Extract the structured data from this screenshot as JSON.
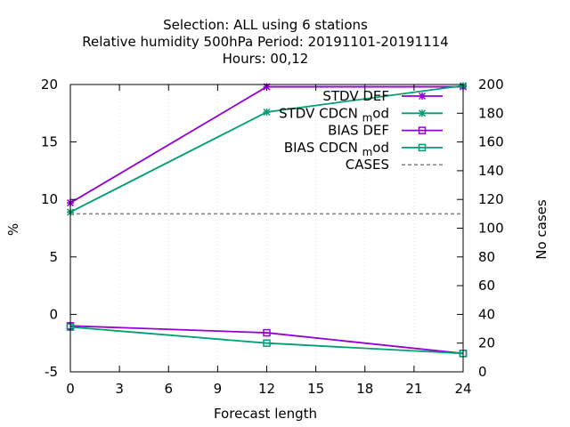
{
  "title_lines": [
    "Selection: ALL using     6 stations",
    "Relative humidity 500hPa   Period: 20191101-20191114",
    "Hours:  00,12"
  ],
  "chart_data": {
    "type": "line",
    "xlabel": "Forecast length",
    "ylabel": "%",
    "y2label": "No cases",
    "xlim": [
      0,
      24
    ],
    "ylim": [
      -5,
      20
    ],
    "y2lim": [
      0,
      200
    ],
    "xticks": [
      "0",
      "3",
      "6",
      "9",
      "12",
      "15",
      "18",
      "21",
      "24"
    ],
    "yticks": [
      "-5",
      "0",
      "5",
      "10",
      "15",
      "20"
    ],
    "y2ticks": [
      "0",
      "20",
      "40",
      "60",
      "80",
      "100",
      "120",
      "140",
      "160",
      "180",
      "200"
    ],
    "legend_position": "top-right",
    "series": [
      {
        "name": "STDV DEF",
        "color": "#9400d3",
        "marker": "star",
        "dash": false,
        "axis": "y",
        "x": [
          0,
          12,
          24
        ],
        "values": [
          9.7,
          19.8,
          19.8
        ]
      },
      {
        "name": "STDV CDCN",
        "name_sub": "m",
        "name_tail": "od",
        "color": "#009e73",
        "marker": "star",
        "dash": false,
        "axis": "y",
        "x": [
          0,
          12,
          24
        ],
        "values": [
          8.9,
          17.6,
          19.9
        ]
      },
      {
        "name": "BIAS DEF",
        "color": "#9400d3",
        "marker": "square",
        "dash": false,
        "axis": "y",
        "x": [
          0,
          12,
          24
        ],
        "values": [
          -1.0,
          -1.6,
          -3.4
        ]
      },
      {
        "name": "BIAS CDCN",
        "name_sub": "m",
        "name_tail": "od",
        "color": "#009e73",
        "marker": "square",
        "dash": false,
        "axis": "y",
        "x": [
          0,
          12,
          24
        ],
        "values": [
          -1.1,
          -2.5,
          -3.4
        ]
      },
      {
        "name": "CASES",
        "color": "#808080",
        "marker": "none",
        "dash": true,
        "axis": "y2",
        "x": [
          0,
          12,
          24
        ],
        "values": [
          110,
          110,
          110
        ]
      }
    ]
  }
}
